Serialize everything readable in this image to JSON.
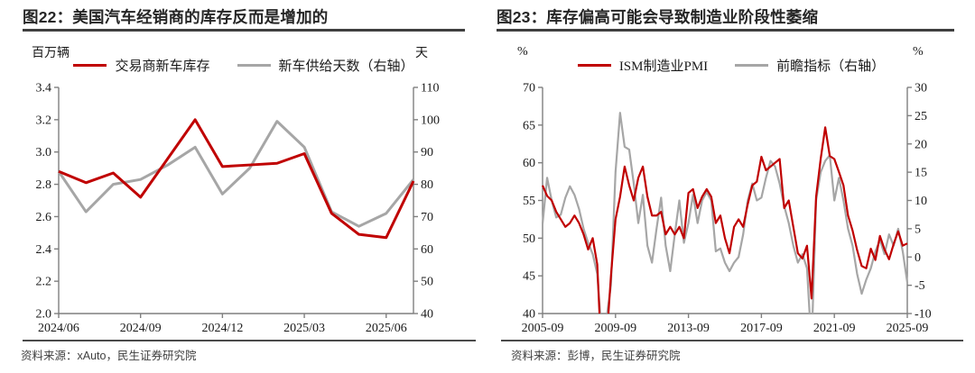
{
  "colors": {
    "red": "#c00000",
    "gray": "#a6a6a6",
    "axis": "#7f7f7f",
    "title_text": "#262626",
    "rule": "#3f3f3f",
    "source_text": "#3f3f3f"
  },
  "panels": [
    {
      "figure_title": "图22：美国汽车经销商的库存反而是增加的",
      "source": "资料来源：xAuto，民生证券研究院"
    },
    {
      "figure_title": "图23：库存偏高可能会导致制造业阶段性萎缩",
      "source": "资料来源：彭博，民生证券研究院"
    }
  ],
  "chart_data": [
    {
      "type": "line",
      "title": "图22：美国汽车经销商的库存反而是增加的",
      "x_start": "2024-06",
      "x_interval_months": 1,
      "points": 14,
      "x_tick_labels": [
        "2024/06",
        "2024/09",
        "2024/12",
        "2025/03",
        "2025/06"
      ],
      "x_tick_positions": [
        0,
        3,
        6,
        9,
        12
      ],
      "left_axis": {
        "label": "百万辆",
        "min": 2.0,
        "max": 3.4,
        "step": 0.2,
        "decimals": 1
      },
      "right_axis": {
        "label": "天",
        "min": 40,
        "max": 110,
        "step": 10,
        "decimals": 0
      },
      "grid": false,
      "legend_position": "top",
      "series": [
        {
          "name": "交易商新车库存",
          "axis": "left",
          "color": "#c00000",
          "values": [
            2.88,
            2.81,
            2.87,
            2.72,
            2.96,
            3.2,
            2.91,
            2.92,
            2.93,
            2.99,
            2.62,
            2.49,
            2.47,
            2.82
          ]
        },
        {
          "name": "新车供给天数（右轴）",
          "axis": "right",
          "color": "#a6a6a6",
          "values": [
            84,
            71.5,
            80,
            81.5,
            86,
            91.5,
            77,
            85,
            99.5,
            91.5,
            71.5,
            67,
            71,
            81.5
          ]
        }
      ]
    },
    {
      "type": "line",
      "title": "图23：库存偏高可能会导致制造业阶段性萎缩",
      "x_start": "2005-09",
      "x_interval_months": 3,
      "points": 81,
      "x_tick_labels": [
        "2005-09",
        "2009-09",
        "2013-09",
        "2017-09",
        "2021-09",
        "2025-09"
      ],
      "x_tick_positions": [
        0,
        16,
        32,
        48,
        64,
        80
      ],
      "left_axis": {
        "label": "%",
        "min": 40,
        "max": 70,
        "step": 5,
        "decimals": 0
      },
      "right_axis": {
        "label": "%",
        "min": -10,
        "max": 30,
        "step": 5,
        "decimals": 0
      },
      "grid": false,
      "legend_position": "top",
      "series": [
        {
          "name": "ISM制造业PMI",
          "axis": "left",
          "color": "#c00000",
          "values": [
            57,
            55.6,
            55,
            53.5,
            52.5,
            51.5,
            52,
            53,
            52,
            50.5,
            48.5,
            50,
            46.5,
            33,
            36,
            45,
            52.5,
            55.5,
            59.5,
            57,
            55,
            58,
            59.5,
            55.5,
            53,
            53,
            53.5,
            50.5,
            51.5,
            50.5,
            51.5,
            50,
            56,
            56.5,
            54,
            55.5,
            56.5,
            55.5,
            52,
            53,
            50,
            48,
            51.5,
            52.5,
            51.5,
            54.5,
            57,
            57.5,
            60.8,
            59,
            59.5,
            60,
            60.5,
            54,
            55,
            51.5,
            48,
            47.3,
            49,
            42,
            55.5,
            60.5,
            64.7,
            60.9,
            60.5,
            58.8,
            57,
            53,
            51,
            48.4,
            46.3,
            46,
            48.6,
            47.1,
            50.3,
            48.5,
            47.2,
            49.2,
            50.9,
            49,
            49.3
          ]
        },
        {
          "name": "前瞻指标（右轴）",
          "axis": "right",
          "color": "#a6a6a6",
          "values": [
            5.9,
            14,
            10,
            7,
            7.5,
            10.5,
            12.5,
            11,
            8.5,
            5,
            2.5,
            0.5,
            -3,
            -14,
            -11,
            -5,
            15,
            25.5,
            19.5,
            19,
            13,
            6,
            11,
            2,
            -1,
            5,
            10.5,
            2,
            -2.5,
            4,
            10,
            2.5,
            6,
            11,
            6,
            10,
            11.5,
            10,
            1,
            1.5,
            -1,
            -2.5,
            -1,
            0,
            4,
            10,
            13,
            10,
            10.5,
            14,
            17,
            16,
            13,
            9,
            6,
            2,
            -1,
            0.5,
            -2,
            -16,
            10,
            15,
            17,
            18,
            10,
            14,
            10,
            5,
            2,
            -3,
            -6.5,
            -4,
            -2,
            1,
            3,
            0.5,
            4,
            2,
            5,
            1,
            -4.5
          ]
        }
      ]
    }
  ]
}
